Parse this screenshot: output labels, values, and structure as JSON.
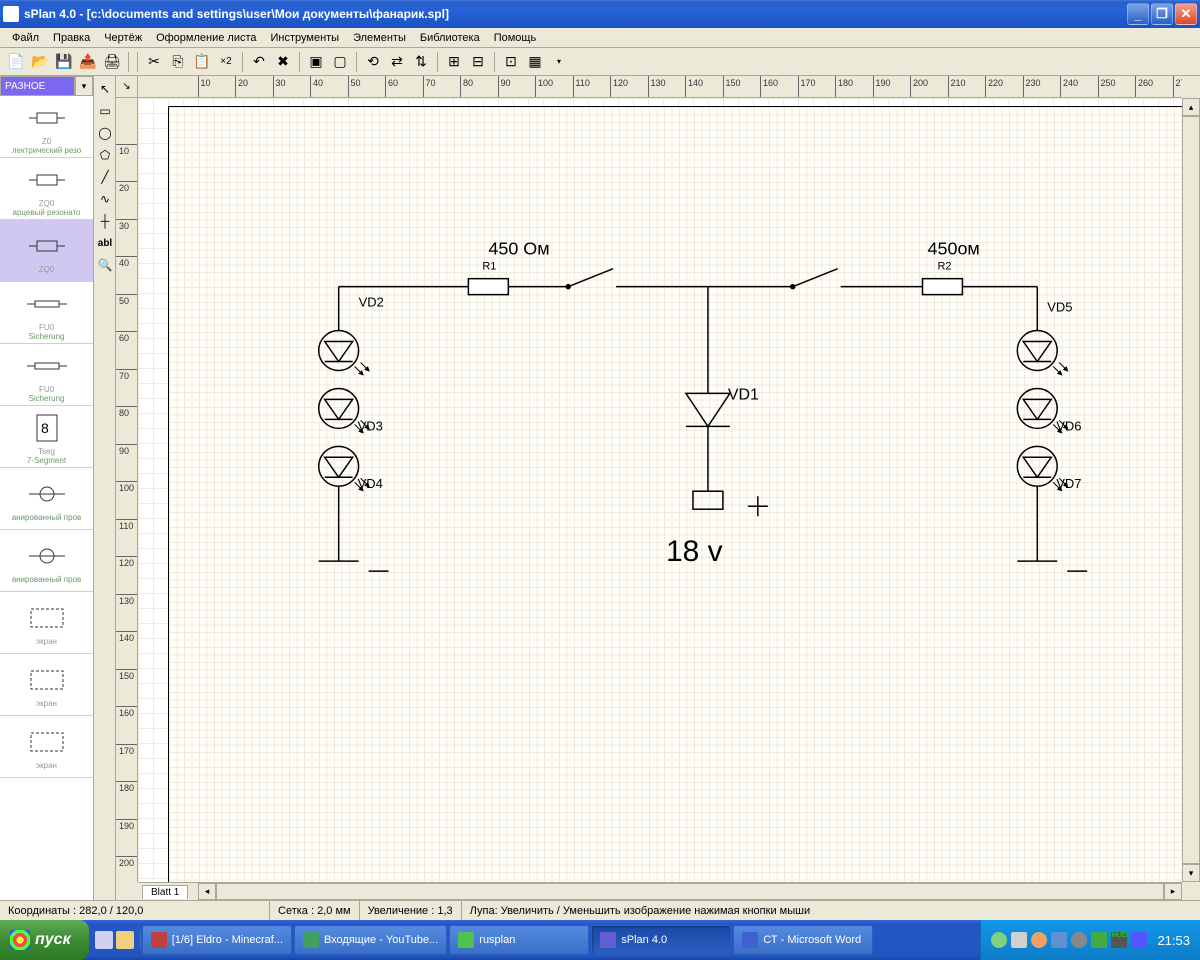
{
  "window": {
    "title": "sPlan 4.0 - [c:\\documents and settings\\user\\Мои документы\\фанарик.spl]"
  },
  "menu": [
    "Файл",
    "Правка",
    "Чертёж",
    "Оформление листа",
    "Инструменты",
    "Элементы",
    "Библиотека",
    "Помощь"
  ],
  "palette": {
    "category": "РАЗНОЕ",
    "items": [
      {
        "label": "Z0",
        "desc": "лектрический резо"
      },
      {
        "label": "ZQ0",
        "desc": "арцевый резонато"
      },
      {
        "label": "ZQ0",
        "desc": ""
      },
      {
        "label": "FU0",
        "desc": "Sicherung"
      },
      {
        "label": "FU0",
        "desc": "Sicherung"
      },
      {
        "label": "Tseg",
        "desc": "7-Segment"
      },
      {
        "label": "",
        "desc": "анированный пров"
      },
      {
        "label": "",
        "desc": "анированный пров"
      },
      {
        "label": "экран",
        "desc": ""
      },
      {
        "label": "экран",
        "desc": ""
      },
      {
        "label": "экран",
        "desc": ""
      }
    ],
    "selected_index": 2
  },
  "ruler": {
    "h_start": 10,
    "h_end": 290,
    "h_step": 10,
    "v_start": 10,
    "v_end": 210,
    "v_step": 10
  },
  "tab": "Blatt 1",
  "statusbar": {
    "coords_label": "Координаты :",
    "coords": "282,0 / 120,0",
    "grid_label": "Сетка :",
    "grid": "2,0 мм",
    "zoom_label": "Увеличение :",
    "zoom": "1,3",
    "hint_label": "Лупа:",
    "hint": "Увеличить / Уменьшить изображение нажимая кнопки мыши"
  },
  "taskbar": {
    "start": "пуск",
    "items": [
      {
        "label": "[1/6] Eldro - Minecraf...",
        "active": false,
        "color": "#c04040"
      },
      {
        "label": "Входящие - YouTube...",
        "active": false,
        "color": "#40a060"
      },
      {
        "label": "rusplan",
        "active": false,
        "color": "#50c050"
      },
      {
        "label": "sPlan 4.0",
        "active": true,
        "color": "#6060d0"
      },
      {
        "label": "СТ - Microsoft Word",
        "active": false,
        "color": "#4060d0"
      }
    ],
    "clock": "21:53"
  },
  "schematic": {
    "r1": {
      "value": "450 Ом",
      "name": "R1"
    },
    "r2": {
      "value": "450ом",
      "name": "R2"
    },
    "vd1": "VD1",
    "vd2": "VD2",
    "vd3": "VD3",
    "vd4": "VD4",
    "vd5": "VD5",
    "vd6": "VD6",
    "vd7": "VD7",
    "voltage": "18 v"
  }
}
